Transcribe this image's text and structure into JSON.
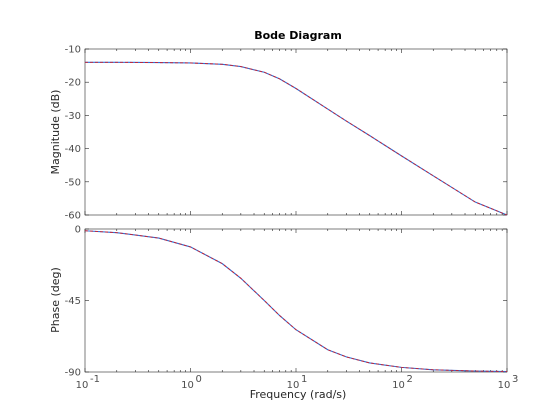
{
  "chart_data": {
    "type": "line",
    "title": "Bode Diagram",
    "xlabel": "Frequency  (rad/s)",
    "x_scale": "log",
    "xlim": [
      0.1,
      1000
    ],
    "x_ticks": [
      0.1,
      1,
      10,
      100,
      1000
    ],
    "x_tick_labels": [
      "10",
      "10",
      "10",
      "10",
      "10"
    ],
    "x_tick_exponents": [
      "-1",
      "0",
      "1",
      "2",
      "3"
    ],
    "grid": false,
    "series_colors": [
      "#2b6fd6",
      "#cc1f2f"
    ],
    "panels": [
      {
        "name": "magnitude",
        "ylabel": "Magnitude (dB)",
        "ylim": [
          -60,
          -10
        ],
        "y_ticks": [
          -60,
          -50,
          -40,
          -30,
          -20,
          -10
        ],
        "y_tick_labels": [
          "-60",
          "-50",
          "-40",
          "-30",
          "-20",
          "-10"
        ],
        "points": [
          [
            0.1,
            -14.0
          ],
          [
            0.2,
            -14.0
          ],
          [
            0.5,
            -14.1
          ],
          [
            1,
            -14.2
          ],
          [
            2,
            -14.6
          ],
          [
            3,
            -15.3
          ],
          [
            5,
            -17.0
          ],
          [
            7,
            -19.0
          ],
          [
            10,
            -21.9
          ],
          [
            20,
            -28.1
          ],
          [
            30,
            -31.7
          ],
          [
            50,
            -36.1
          ],
          [
            100,
            -42.2
          ],
          [
            200,
            -48.2
          ],
          [
            500,
            -56.1
          ],
          [
            1000,
            -60.0
          ]
        ]
      },
      {
        "name": "phase",
        "ylabel": "Phase (deg)",
        "ylim": [
          -90,
          0
        ],
        "y_ticks": [
          -90,
          -45,
          0
        ],
        "y_tick_labels": [
          "-90",
          "-45",
          "0"
        ],
        "points": [
          [
            0.1,
            -1.1
          ],
          [
            0.2,
            -2.3
          ],
          [
            0.5,
            -5.7
          ],
          [
            1,
            -11.3
          ],
          [
            2,
            -21.8
          ],
          [
            3,
            -31.0
          ],
          [
            5,
            -45.0
          ],
          [
            7,
            -54.5
          ],
          [
            10,
            -63.4
          ],
          [
            20,
            -76.0
          ],
          [
            30,
            -80.5
          ],
          [
            50,
            -84.3
          ],
          [
            100,
            -87.1
          ],
          [
            200,
            -88.6
          ],
          [
            500,
            -89.4
          ],
          [
            1000,
            -89.7
          ]
        ]
      }
    ]
  }
}
